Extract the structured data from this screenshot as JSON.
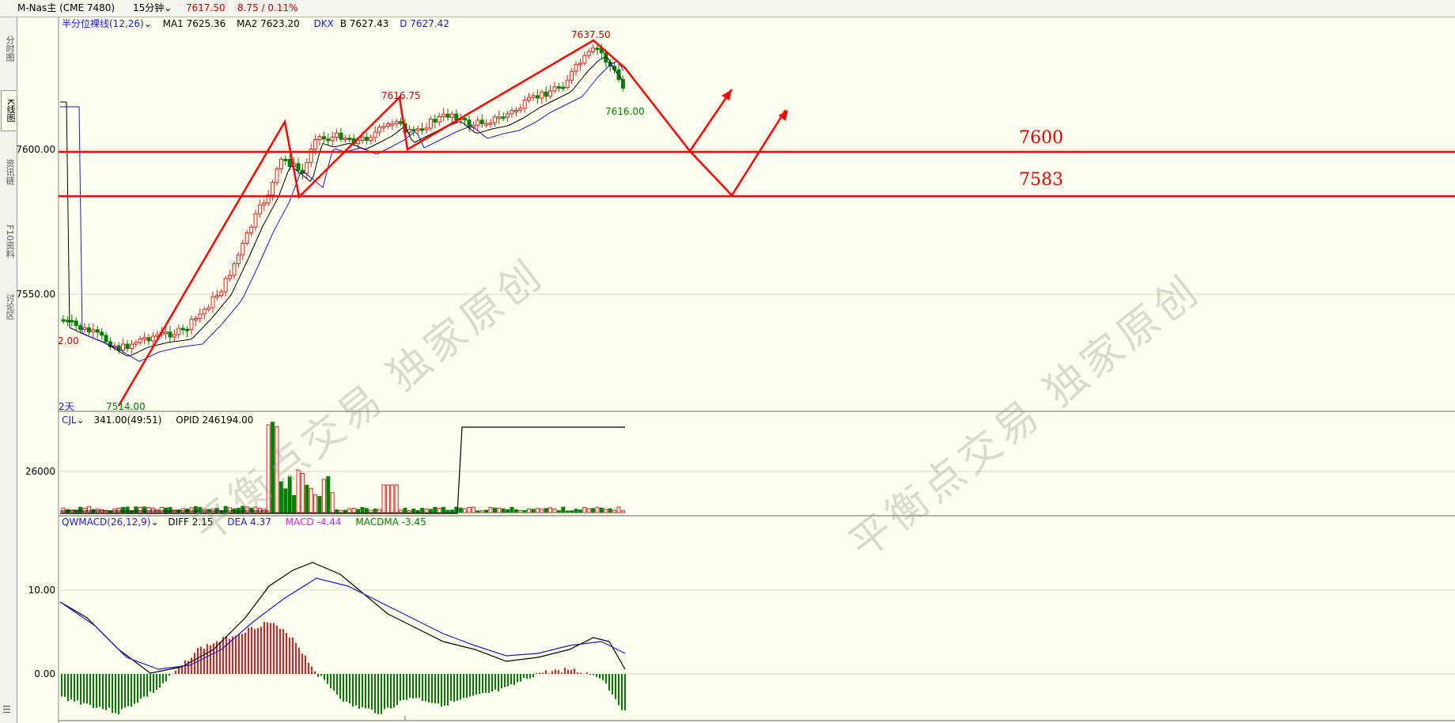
{
  "topbar": {
    "symbol": "M-Nas主 (CME 7480)",
    "period": "15分钟",
    "last_price": "7617.50",
    "change": "8.75 / 0.11%"
  },
  "sidebar": {
    "tabs": [
      {
        "label": "分时图"
      },
      {
        "label": "K线图"
      },
      {
        "label": "资讯链"
      },
      {
        "label": "F10资料"
      },
      {
        "label": "讨论区"
      }
    ]
  },
  "main_panel": {
    "indicator": "半分位裸线(12,26)",
    "ma1": "MA1 7625.36",
    "ma2": "MA2 7623.20",
    "dkx": "DKX",
    "dkx_b": "B 7627.43",
    "dkx_d": "D 7627.42",
    "y_labels": [
      "7600.00",
      "7550.00"
    ],
    "left_edge_label": "2.00",
    "days_label": "2天",
    "low_label": "7514.00",
    "mid_high_label": "7616.75",
    "high_label": "7637.50",
    "last_low_label": "7616.00",
    "level_7600": "7600",
    "level_7583": "7583"
  },
  "volume_panel": {
    "indicator": "CJL",
    "value": "341.00(49:51)",
    "opid": "OPID 246194.00",
    "y_label": "26000"
  },
  "macd_panel": {
    "indicator": "QWMACD(26,12,9)",
    "diff": "DIFF 2.15",
    "dea": "DEA 4.37",
    "macd": "MACD -4.44",
    "macdma": "MACDMA -3.45",
    "y_labels": [
      "10.00",
      "0.00"
    ]
  },
  "watermark": {
    "text": "平衡点交易  独家原创"
  },
  "colors": {
    "up": "#e02020",
    "down": "#008000",
    "ma_black": "#000000",
    "ma_blue": "#1a1ad0",
    "annotation_red": "#ff0000",
    "background": "#fffff0"
  }
}
